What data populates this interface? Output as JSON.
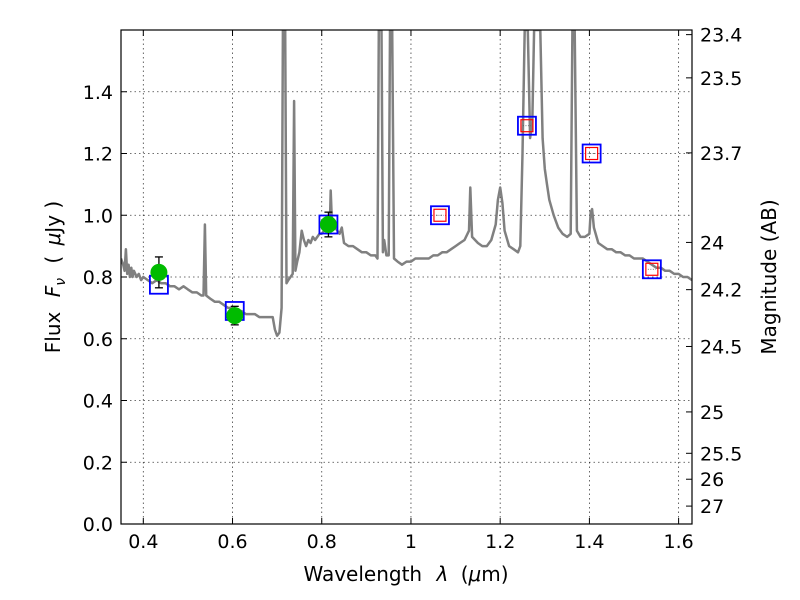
{
  "chart_data": {
    "type": "line",
    "xlabel": "Wavelength",
    "xlabel_symbol": "λ",
    "xlabel_unit_open": "(",
    "xlabel_unit_mu": "μ",
    "xlabel_unit_rest": "m)",
    "ylabel": "Flux",
    "ylabel_symbol": "F",
    "ylabel_subscript": "ν",
    "ylabel_unit_open": "(",
    "ylabel_unit_mu": "μ",
    "ylabel_unit_rest": "Jy )",
    "y2label": "Magnitude (AB)",
    "xlim": [
      0.35,
      1.63
    ],
    "ylim": [
      0.0,
      1.6
    ],
    "grid": true,
    "x_ticks": [
      {
        "value": 0.4,
        "label": "0.4"
      },
      {
        "value": 0.6,
        "label": "0.6"
      },
      {
        "value": 0.8,
        "label": "0.8"
      },
      {
        "value": 1.0,
        "label": "1"
      },
      {
        "value": 1.2,
        "label": "1.2"
      },
      {
        "value": 1.4,
        "label": "1.4"
      },
      {
        "value": 1.6,
        "label": "1.6"
      }
    ],
    "y_ticks": [
      {
        "value": 0.0,
        "label": "0.0"
      },
      {
        "value": 0.2,
        "label": "0.2"
      },
      {
        "value": 0.4,
        "label": "0.4"
      },
      {
        "value": 0.6,
        "label": "0.6"
      },
      {
        "value": 0.8,
        "label": "0.8"
      },
      {
        "value": 1.0,
        "label": "1.0"
      },
      {
        "value": 1.2,
        "label": "1.2"
      },
      {
        "value": 1.4,
        "label": "1.4"
      }
    ],
    "mag_ticks": [
      {
        "label": "23.4",
        "flux": 1.585
      },
      {
        "label": "23.5",
        "flux": 1.445
      },
      {
        "label": "23.7",
        "flux": 1.202
      },
      {
        "label": "24",
        "flux": 0.912
      },
      {
        "label": "24.2",
        "flux": 0.759
      },
      {
        "label": "24.5",
        "flux": 0.575
      },
      {
        "label": "25",
        "flux": 0.363
      },
      {
        "label": "25.5",
        "flux": 0.229
      },
      {
        "label": "26",
        "flux": 0.145
      },
      {
        "label": "27",
        "flux": 0.058
      }
    ],
    "series": [
      {
        "kind": "spectrum",
        "color": "#808080",
        "points": [
          [
            0.35,
            0.86
          ],
          [
            0.355,
            0.84
          ],
          [
            0.358,
            0.82
          ],
          [
            0.361,
            0.89
          ],
          [
            0.364,
            0.81
          ],
          [
            0.367,
            0.84
          ],
          [
            0.37,
            0.8
          ],
          [
            0.373,
            0.83
          ],
          [
            0.376,
            0.8
          ],
          [
            0.379,
            0.82
          ],
          [
            0.382,
            0.81
          ],
          [
            0.385,
            0.8
          ],
          [
            0.39,
            0.81
          ],
          [
            0.395,
            0.79
          ],
          [
            0.4,
            0.8
          ],
          [
            0.41,
            0.79
          ],
          [
            0.42,
            0.78
          ],
          [
            0.43,
            0.79
          ],
          [
            0.44,
            0.78
          ],
          [
            0.45,
            0.78
          ],
          [
            0.46,
            0.77
          ],
          [
            0.47,
            0.77
          ],
          [
            0.48,
            0.76
          ],
          [
            0.49,
            0.77
          ],
          [
            0.5,
            0.76
          ],
          [
            0.51,
            0.75
          ],
          [
            0.52,
            0.75
          ],
          [
            0.53,
            0.74
          ],
          [
            0.535,
            0.74
          ],
          [
            0.538,
            0.97
          ],
          [
            0.541,
            0.74
          ],
          [
            0.55,
            0.73
          ],
          [
            0.56,
            0.72
          ],
          [
            0.57,
            0.72
          ],
          [
            0.58,
            0.71
          ],
          [
            0.59,
            0.7
          ],
          [
            0.6,
            0.7
          ],
          [
            0.61,
            0.69
          ],
          [
            0.62,
            0.69
          ],
          [
            0.63,
            0.68
          ],
          [
            0.64,
            0.68
          ],
          [
            0.65,
            0.68
          ],
          [
            0.66,
            0.67
          ],
          [
            0.67,
            0.67
          ],
          [
            0.68,
            0.67
          ],
          [
            0.69,
            0.67
          ],
          [
            0.695,
            0.63
          ],
          [
            0.7,
            0.61
          ],
          [
            0.705,
            0.62
          ],
          [
            0.71,
            0.7
          ],
          [
            0.713,
            1.6
          ],
          [
            0.718,
            1.6
          ],
          [
            0.721,
            0.78
          ],
          [
            0.725,
            0.79
          ],
          [
            0.73,
            0.8
          ],
          [
            0.735,
            0.81
          ],
          [
            0.738,
            1.37
          ],
          [
            0.741,
            0.82
          ],
          [
            0.745,
            0.85
          ],
          [
            0.75,
            0.88
          ],
          [
            0.755,
            0.95
          ],
          [
            0.76,
            0.92
          ],
          [
            0.765,
            0.9
          ],
          [
            0.77,
            0.92
          ],
          [
            0.775,
            0.91
          ],
          [
            0.78,
            0.93
          ],
          [
            0.785,
            0.92
          ],
          [
            0.79,
            0.93
          ],
          [
            0.795,
            0.94
          ],
          [
            0.8,
            0.94
          ],
          [
            0.805,
            0.95
          ],
          [
            0.81,
            0.96
          ],
          [
            0.815,
            0.97
          ],
          [
            0.818,
            0.96
          ],
          [
            0.82,
            1.08
          ],
          [
            0.823,
            0.97
          ],
          [
            0.83,
            0.96
          ],
          [
            0.84,
            0.94
          ],
          [
            0.845,
            0.96
          ],
          [
            0.85,
            0.91
          ],
          [
            0.86,
            0.9
          ],
          [
            0.87,
            0.9
          ],
          [
            0.88,
            0.89
          ],
          [
            0.89,
            0.88
          ],
          [
            0.9,
            0.88
          ],
          [
            0.91,
            0.87
          ],
          [
            0.92,
            0.87
          ],
          [
            0.925,
            0.86
          ],
          [
            0.928,
            1.6
          ],
          [
            0.934,
            1.6
          ],
          [
            0.937,
            0.88
          ],
          [
            0.94,
            0.92
          ],
          [
            0.945,
            0.87
          ],
          [
            0.95,
            0.87
          ],
          [
            0.953,
            1.6
          ],
          [
            0.958,
            1.6
          ],
          [
            0.962,
            0.86
          ],
          [
            0.97,
            0.85
          ],
          [
            0.98,
            0.84
          ],
          [
            0.99,
            0.85
          ],
          [
            1.0,
            0.85
          ],
          [
            1.01,
            0.86
          ],
          [
            1.02,
            0.86
          ],
          [
            1.03,
            0.86
          ],
          [
            1.04,
            0.86
          ],
          [
            1.05,
            0.87
          ],
          [
            1.06,
            0.87
          ],
          [
            1.07,
            0.88
          ],
          [
            1.08,
            0.88
          ],
          [
            1.09,
            0.89
          ],
          [
            1.1,
            0.9
          ],
          [
            1.11,
            0.91
          ],
          [
            1.12,
            0.92
          ],
          [
            1.13,
            0.95
          ],
          [
            1.133,
            1.09
          ],
          [
            1.137,
            0.93
          ],
          [
            1.15,
            0.91
          ],
          [
            1.16,
            0.9
          ],
          [
            1.17,
            0.9
          ],
          [
            1.18,
            0.92
          ],
          [
            1.19,
            0.97
          ],
          [
            1.195,
            1.05
          ],
          [
            1.2,
            1.09
          ],
          [
            1.205,
            1.04
          ],
          [
            1.21,
            0.95
          ],
          [
            1.22,
            0.9
          ],
          [
            1.23,
            0.89
          ],
          [
            1.24,
            0.88
          ],
          [
            1.245,
            0.9
          ],
          [
            1.25,
            1.2
          ],
          [
            1.255,
            1.6
          ],
          [
            1.262,
            1.6
          ],
          [
            1.267,
            1.25
          ],
          [
            1.272,
            1.3
          ],
          [
            1.276,
            1.6
          ],
          [
            1.282,
            1.6
          ],
          [
            1.285,
            1.6
          ],
          [
            1.29,
            1.6
          ],
          [
            1.295,
            1.25
          ],
          [
            1.3,
            1.15
          ],
          [
            1.305,
            1.1
          ],
          [
            1.31,
            1.05
          ],
          [
            1.32,
            1.0
          ],
          [
            1.33,
            0.96
          ],
          [
            1.34,
            0.94
          ],
          [
            1.35,
            0.93
          ],
          [
            1.358,
            0.94
          ],
          [
            1.362,
            1.6
          ],
          [
            1.367,
            1.6
          ],
          [
            1.372,
            0.95
          ],
          [
            1.38,
            0.93
          ],
          [
            1.39,
            0.93
          ],
          [
            1.4,
            0.94
          ],
          [
            1.403,
            1.01
          ],
          [
            1.406,
            1.02
          ],
          [
            1.41,
            0.96
          ],
          [
            1.42,
            0.91
          ],
          [
            1.43,
            0.9
          ],
          [
            1.44,
            0.89
          ],
          [
            1.45,
            0.89
          ],
          [
            1.46,
            0.88
          ],
          [
            1.47,
            0.88
          ],
          [
            1.48,
            0.87
          ],
          [
            1.49,
            0.87
          ],
          [
            1.5,
            0.86
          ],
          [
            1.51,
            0.86
          ],
          [
            1.52,
            0.86
          ],
          [
            1.53,
            0.85
          ],
          [
            1.54,
            0.84
          ],
          [
            1.55,
            0.83
          ],
          [
            1.56,
            0.83
          ],
          [
            1.57,
            0.82
          ],
          [
            1.58,
            0.82
          ],
          [
            1.59,
            0.81
          ],
          [
            1.6,
            0.81
          ],
          [
            1.61,
            0.8
          ],
          [
            1.62,
            0.8
          ],
          [
            1.63,
            0.79
          ]
        ]
      },
      {
        "kind": "model-photometry-squares",
        "color": "#0000ff",
        "points": [
          [
            0.435,
            0.775
          ],
          [
            0.605,
            0.69
          ],
          [
            0.815,
            0.97
          ],
          [
            1.065,
            1.0
          ],
          [
            1.26,
            1.29
          ],
          [
            1.405,
            1.2
          ],
          [
            1.54,
            0.825
          ]
        ]
      },
      {
        "kind": "observed-photometry-squares",
        "color": "#ff0000",
        "points": [
          [
            1.065,
            1.0
          ],
          [
            1.26,
            1.29
          ],
          [
            1.405,
            1.2
          ],
          [
            1.54,
            0.825
          ]
        ]
      },
      {
        "kind": "observed-photometry-circles",
        "color": "#00bb00",
        "points": [
          [
            0.435,
            0.815,
            0.05
          ],
          [
            0.605,
            0.675,
            0.03
          ],
          [
            0.815,
            0.97,
            0.04
          ]
        ]
      }
    ]
  }
}
